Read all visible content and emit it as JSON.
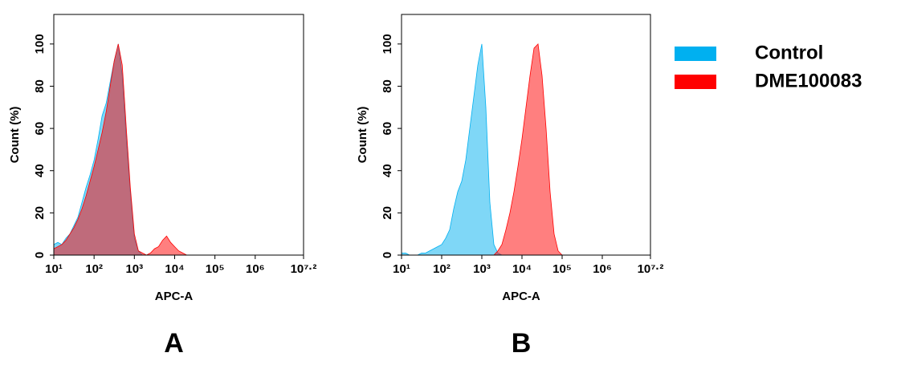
{
  "chart_data": [
    {
      "type": "area",
      "panel_label": "A",
      "xlabel": "APC-A",
      "ylabel": "Count (%)",
      "log_x": true,
      "xlim": [
        10,
        15848932
      ],
      "ylim": [
        0,
        114
      ],
      "xticks": [
        {
          "value": 10,
          "label": "10¹"
        },
        {
          "value": 100,
          "label": "10²"
        },
        {
          "value": 1000,
          "label": "10³"
        },
        {
          "value": 10000,
          "label": "10⁴"
        },
        {
          "value": 100000,
          "label": "10⁵"
        },
        {
          "value": 1000000,
          "label": "10⁶"
        },
        {
          "value": 15848932,
          "label": "10⁷·²"
        }
      ],
      "yticks": [
        0,
        20,
        40,
        60,
        80,
        100
      ],
      "x": [
        10,
        12.6,
        15.8,
        20,
        25.1,
        31.6,
        39.8,
        50.1,
        63.1,
        79.4,
        100,
        126,
        158,
        200,
        251,
        316,
        398,
        501,
        631,
        794,
        1000,
        1259,
        1585,
        1995,
        2512,
        3162,
        3981,
        5012,
        6310,
        7943,
        10000,
        12589,
        15849,
        19953,
        25119,
        31623,
        39811,
        50119,
        63096,
        79433,
        100000,
        125893,
        158489
      ],
      "series": [
        {
          "color": "#00b0f0",
          "values": [
            5,
            6,
            5,
            8,
            10,
            14,
            18,
            25,
            32,
            38,
            45,
            55,
            66,
            72,
            82,
            92,
            100,
            85,
            55,
            30,
            8,
            2,
            0,
            0,
            0,
            0,
            0,
            0,
            0,
            0,
            0,
            0,
            0,
            0,
            0,
            0,
            0,
            0,
            0,
            0,
            0,
            0,
            0
          ]
        },
        {
          "color": "#ff0000",
          "values": [
            3,
            4,
            5,
            7,
            10,
            13,
            17,
            22,
            28,
            35,
            42,
            50,
            58,
            68,
            80,
            92,
            100,
            90,
            60,
            32,
            10,
            2,
            1,
            0,
            1,
            3,
            4,
            7,
            9,
            6,
            4,
            2,
            1,
            0,
            0,
            0,
            0,
            0,
            0,
            0,
            0,
            0,
            0
          ]
        }
      ]
    },
    {
      "type": "area",
      "panel_label": "B",
      "xlabel": "APC-A",
      "ylabel": "Count (%)",
      "log_x": true,
      "legend": "right",
      "xlim": [
        10,
        15848932
      ],
      "ylim": [
        0,
        114
      ],
      "xticks": [
        {
          "value": 10,
          "label": "10¹"
        },
        {
          "value": 100,
          "label": "10²"
        },
        {
          "value": 1000,
          "label": "10³"
        },
        {
          "value": 10000,
          "label": "10⁴"
        },
        {
          "value": 100000,
          "label": "10⁵"
        },
        {
          "value": 1000000,
          "label": "10⁶"
        },
        {
          "value": 15848932,
          "label": "10⁷·²"
        }
      ],
      "yticks": [
        0,
        20,
        40,
        60,
        80,
        100
      ],
      "x": [
        10,
        12.6,
        15.8,
        20,
        25.1,
        31.6,
        39.8,
        50.1,
        63.1,
        79.4,
        100,
        126,
        158,
        200,
        251,
        316,
        398,
        501,
        631,
        794,
        1000,
        1259,
        1585,
        1995,
        2512,
        3162,
        3981,
        5012,
        6310,
        7943,
        10000,
        12589,
        15849,
        19953,
        25119,
        31623,
        39811,
        50119,
        63096,
        79433,
        100000,
        125893,
        158489
      ],
      "series": [
        {
          "name": "Control",
          "color": "#00b0f0",
          "values": [
            1,
            1,
            0,
            0,
            0,
            1,
            1,
            2,
            3,
            4,
            5,
            8,
            12,
            22,
            30,
            35,
            45,
            60,
            75,
            90,
            100,
            70,
            25,
            5,
            1,
            0,
            0,
            0,
            0,
            0,
            0,
            0,
            0,
            0,
            0,
            0,
            0,
            0,
            0,
            0,
            0,
            0,
            0
          ]
        },
        {
          "name": "DME100083",
          "color": "#ff0000",
          "values": [
            0,
            0,
            0,
            0,
            0,
            0,
            0,
            0,
            0,
            0,
            0,
            0,
            0,
            0,
            0,
            0,
            0,
            0,
            0,
            0,
            0,
            0,
            0,
            0,
            2,
            5,
            12,
            20,
            30,
            42,
            55,
            70,
            85,
            98,
            100,
            85,
            60,
            30,
            10,
            2,
            0,
            0,
            0
          ]
        }
      ]
    }
  ]
}
